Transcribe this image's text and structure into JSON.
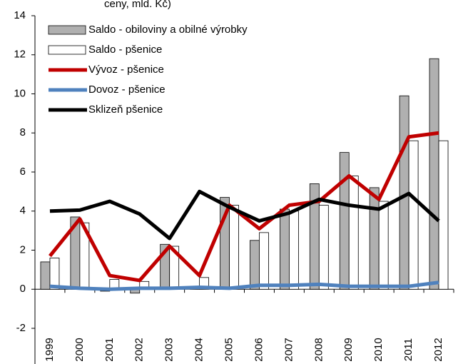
{
  "chart_data": {
    "type": "bar",
    "title": "ceny, mld. Kč)",
    "categories": [
      "1999",
      "2000",
      "2001",
      "2002",
      "2003",
      "2004",
      "2005",
      "2006",
      "2007",
      "2008",
      "2009",
      "2010",
      "2011",
      "2012"
    ],
    "series": [
      {
        "name": "Saldo - obiloviny a obilné výrobky",
        "type": "bar",
        "color": "#b0b0b0",
        "values": [
          1.4,
          3.7,
          -0.1,
          -0.2,
          2.3,
          0.15,
          4.7,
          2.5,
          4.1,
          5.4,
          7.0,
          5.2,
          9.9,
          11.8
        ]
      },
      {
        "name": "Saldo - pšenice",
        "type": "bar",
        "color": "#ffffff",
        "values": [
          1.6,
          3.4,
          0.5,
          0.4,
          2.2,
          0.6,
          4.3,
          2.9,
          4.0,
          4.3,
          5.8,
          4.5,
          7.6,
          7.6
        ]
      },
      {
        "name": "Vývoz - pšenice",
        "type": "line",
        "color": "#c00000",
        "values": [
          1.7,
          3.6,
          0.7,
          0.45,
          2.2,
          0.7,
          4.3,
          3.1,
          4.3,
          4.5,
          5.8,
          4.6,
          7.8,
          8.0
        ]
      },
      {
        "name": "Dovoz - pšenice",
        "type": "line",
        "color": "#4f81bd",
        "values": [
          0.15,
          0.05,
          0.0,
          0.05,
          0.05,
          0.1,
          0.05,
          0.2,
          0.2,
          0.25,
          0.15,
          0.15,
          0.15,
          0.35
        ]
      },
      {
        "name": "Sklizeň pšenice",
        "type": "line",
        "color": "#000000",
        "values": [
          4.0,
          4.05,
          4.5,
          3.85,
          2.6,
          5.0,
          4.2,
          3.5,
          3.9,
          4.6,
          4.3,
          4.1,
          4.9,
          3.5
        ]
      }
    ],
    "ylim": [
      -2,
      14
    ],
    "yticks": [
      -2,
      0,
      2,
      4,
      6,
      8,
      10,
      12,
      14
    ]
  }
}
